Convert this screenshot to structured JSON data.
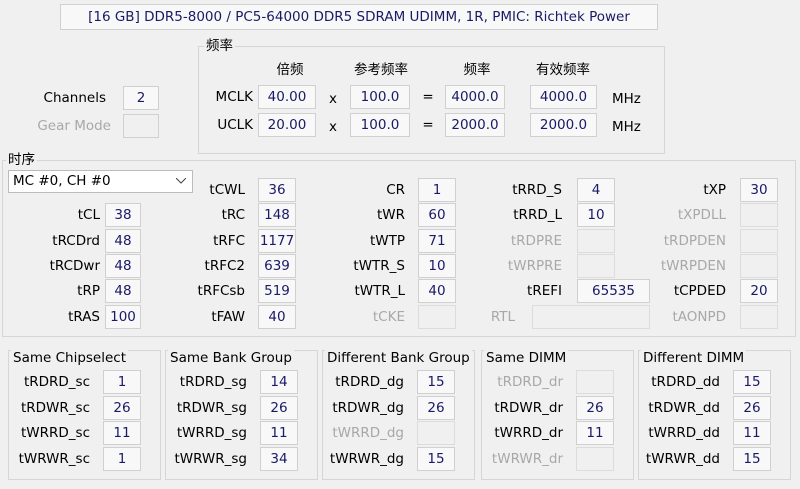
{
  "header": {
    "module": "[16 GB] DDR5-8000 / PC5-64000 DDR5 SDRAM UDIMM, 1R, PMIC: Richtek Power"
  },
  "channels": {
    "label": "Channels",
    "value": "2"
  },
  "gear_mode": {
    "label": "Gear Mode",
    "disabled": true
  },
  "frequency": {
    "title": "频率",
    "columns": [
      "倍频",
      "参考频率",
      "频率",
      "有效频率"
    ],
    "rows": [
      {
        "label": "MCLK",
        "multiplier": "40.00",
        "times": "x",
        "reference": "100.0",
        "equals": "=",
        "frequency": "4000.0",
        "effective": "4000.0",
        "unit": "MHz"
      },
      {
        "label": "UCLK",
        "multiplier": "20.00",
        "times": "x",
        "reference": "100.0",
        "equals": "=",
        "frequency": "2000.0",
        "effective": "2000.0",
        "unit": "MHz"
      }
    ]
  },
  "timings": {
    "title": "时序",
    "selector": "MC #0, CH #0",
    "items": [
      {
        "label": "tCWL",
        "value": "36"
      },
      {
        "label": "CR",
        "value": "1"
      },
      {
        "label": "tRRD_S",
        "value": "4"
      },
      {
        "label": "tXP",
        "value": "30"
      },
      {
        "label": "tCL",
        "value": "38"
      },
      {
        "label": "tRC",
        "value": "148"
      },
      {
        "label": "tWR",
        "value": "60"
      },
      {
        "label": "tRRD_L",
        "value": "10"
      },
      {
        "label": "tXPDLL",
        "disabled": true
      },
      {
        "label": "tRCDrd",
        "value": "48"
      },
      {
        "label": "tRFC",
        "value": "1177"
      },
      {
        "label": "tWTP",
        "value": "71"
      },
      {
        "label": "tRDPRE",
        "disabled": true
      },
      {
        "label": "tRDPDEN",
        "disabled": true
      },
      {
        "label": "tRCDwr",
        "value": "48"
      },
      {
        "label": "tRFC2",
        "value": "639"
      },
      {
        "label": "tWTR_S",
        "value": "10"
      },
      {
        "label": "tWRPRE",
        "disabled": true
      },
      {
        "label": "tWRPDEN",
        "disabled": true
      },
      {
        "label": "tRP",
        "value": "48"
      },
      {
        "label": "tRFCsb",
        "value": "519"
      },
      {
        "label": "tWTR_L",
        "value": "40"
      },
      {
        "label": "tREFI",
        "value": "65535"
      },
      {
        "label": "tCPDED",
        "value": "20"
      },
      {
        "label": "tRAS",
        "value": "100"
      },
      {
        "label": "tFAW",
        "value": "40"
      },
      {
        "label": "tCKE",
        "disabled": true
      },
      {
        "label": "RTL",
        "disabled": true
      },
      {
        "label": "tAONPD",
        "disabled": true
      }
    ]
  },
  "turnaround_groups": [
    {
      "title": "Same Chipselect",
      "items": [
        {
          "label": "tRDRD_sc",
          "value": "1"
        },
        {
          "label": "tRDWR_sc",
          "value": "26"
        },
        {
          "label": "tWRRD_sc",
          "value": "11"
        },
        {
          "label": "tWRWR_sc",
          "value": "1"
        }
      ]
    },
    {
      "title": "Same Bank Group",
      "items": [
        {
          "label": "tRDRD_sg",
          "value": "14"
        },
        {
          "label": "tRDWR_sg",
          "value": "26"
        },
        {
          "label": "tWRRD_sg",
          "value": "11"
        },
        {
          "label": "tWRWR_sg",
          "value": "34"
        }
      ]
    },
    {
      "title": "Different Bank Group",
      "items": [
        {
          "label": "tRDRD_dg",
          "value": "15"
        },
        {
          "label": "tRDWR_dg",
          "value": "26"
        },
        {
          "label": "tWRRD_dg",
          "disabled": true
        },
        {
          "label": "tWRWR_dg",
          "value": "15"
        }
      ]
    },
    {
      "title": "Same DIMM",
      "items": [
        {
          "label": "tRDRD_dr",
          "disabled": true
        },
        {
          "label": "tRDWR_dr",
          "value": "26"
        },
        {
          "label": "tWRRD_dr",
          "value": "11"
        },
        {
          "label": "tWRWR_dr",
          "disabled": true
        }
      ]
    },
    {
      "title": "Different DIMM",
      "items": [
        {
          "label": "tRDRD_dd",
          "value": "15"
        },
        {
          "label": "tRDWR_dd",
          "value": "26"
        },
        {
          "label": "tWRRD_dd",
          "value": "11"
        },
        {
          "label": "tWRWR_dd",
          "value": "15"
        }
      ]
    }
  ]
}
